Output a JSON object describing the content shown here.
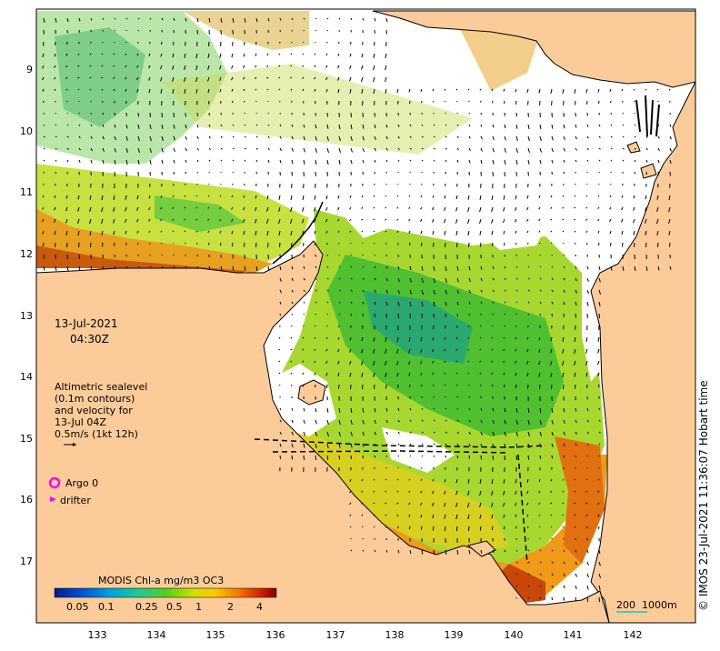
{
  "date": "13-Jul-2021",
  "time": "04:30Z",
  "legend": {
    "lines": [
      "Altimetric sealevel",
      "(0.1m contours)",
      "and velocity for",
      "13-Jul 04Z",
      "0.5m/s (1kt 12h)"
    ],
    "argo_label": "Argo 0",
    "drifter_label": "drifter",
    "argo_color": "#ff00ff",
    "drifter_color": "#ff00ff"
  },
  "colorbar": {
    "title": "MODIS Chl-a mg/m3 OC3",
    "ticks": [
      "0.05",
      "0.1",
      "0.25",
      "0.5",
      "1",
      "2",
      "4"
    ]
  },
  "y_axis_ticks": [
    "9",
    "10",
    "11",
    "12",
    "13",
    "14",
    "15",
    "16",
    "17"
  ],
  "x_axis_ticks": [
    "133",
    "134",
    "135",
    "136",
    "137",
    "138",
    "139",
    "140",
    "141",
    "142"
  ],
  "scale_bar": {
    "label_a": "200",
    "label_b": "1000m"
  },
  "credit": "© IMOS 23-Jul-2021 11:36:07 Hobart time",
  "colors": {
    "land": "#fbcb99",
    "ocean": "#ffffff",
    "coast": "#000000",
    "scale_bar": "#44ccbb"
  }
}
